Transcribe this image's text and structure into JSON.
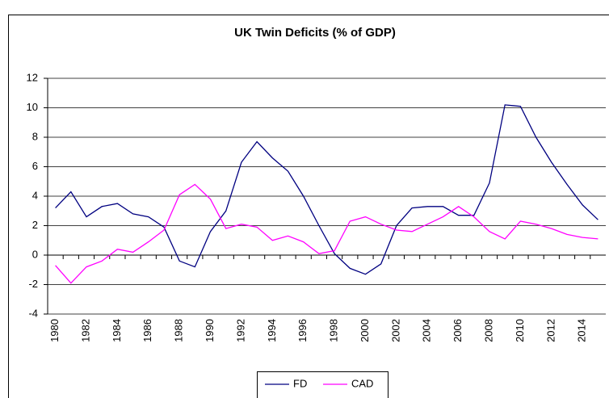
{
  "chart_data": {
    "type": "line",
    "title": "UK Twin Deficits (% of GDP)",
    "categories": [
      "1980",
      null,
      "1982",
      null,
      "1984",
      null,
      "1986",
      null,
      "1988",
      null,
      "1990",
      null,
      "1992",
      null,
      "1994",
      null,
      "1996",
      null,
      "1998",
      null,
      "2000",
      null,
      "2002",
      null,
      "2004",
      null,
      "2006",
      null,
      "2008",
      null,
      "2010",
      null,
      "2012",
      null,
      "2014",
      null
    ],
    "series": [
      {
        "name": "FD",
        "color": "#000080",
        "values": [
          3.2,
          4.3,
          2.6,
          3.3,
          3.5,
          2.8,
          2.6,
          1.9,
          -0.4,
          -0.8,
          1.6,
          3.0,
          6.3,
          7.7,
          6.6,
          5.7,
          4.0,
          2.0,
          0.1,
          -0.9,
          -1.3,
          -0.6,
          2.0,
          3.2,
          3.3,
          3.3,
          2.7,
          2.7,
          4.9,
          10.2,
          10.1,
          8.0,
          6.3,
          4.8,
          3.4,
          2.4
        ]
      },
      {
        "name": "CAD",
        "color": "#ff00ff",
        "values": [
          -0.7,
          -1.9,
          -0.8,
          -0.4,
          0.4,
          0.2,
          0.9,
          1.7,
          4.1,
          4.8,
          3.8,
          1.8,
          2.1,
          1.9,
          1.0,
          1.3,
          0.9,
          0.1,
          0.3,
          2.3,
          2.6,
          2.1,
          1.7,
          1.6,
          2.1,
          2.6,
          3.3,
          2.6,
          1.6,
          1.1,
          2.3,
          2.1,
          1.8,
          1.4,
          1.2,
          1.1
        ]
      }
    ],
    "ylim": [
      -4,
      12
    ],
    "yticks": [
      -4,
      -2,
      0,
      2,
      4,
      6,
      8,
      10,
      12
    ],
    "grid": true,
    "legend": "bottom"
  }
}
